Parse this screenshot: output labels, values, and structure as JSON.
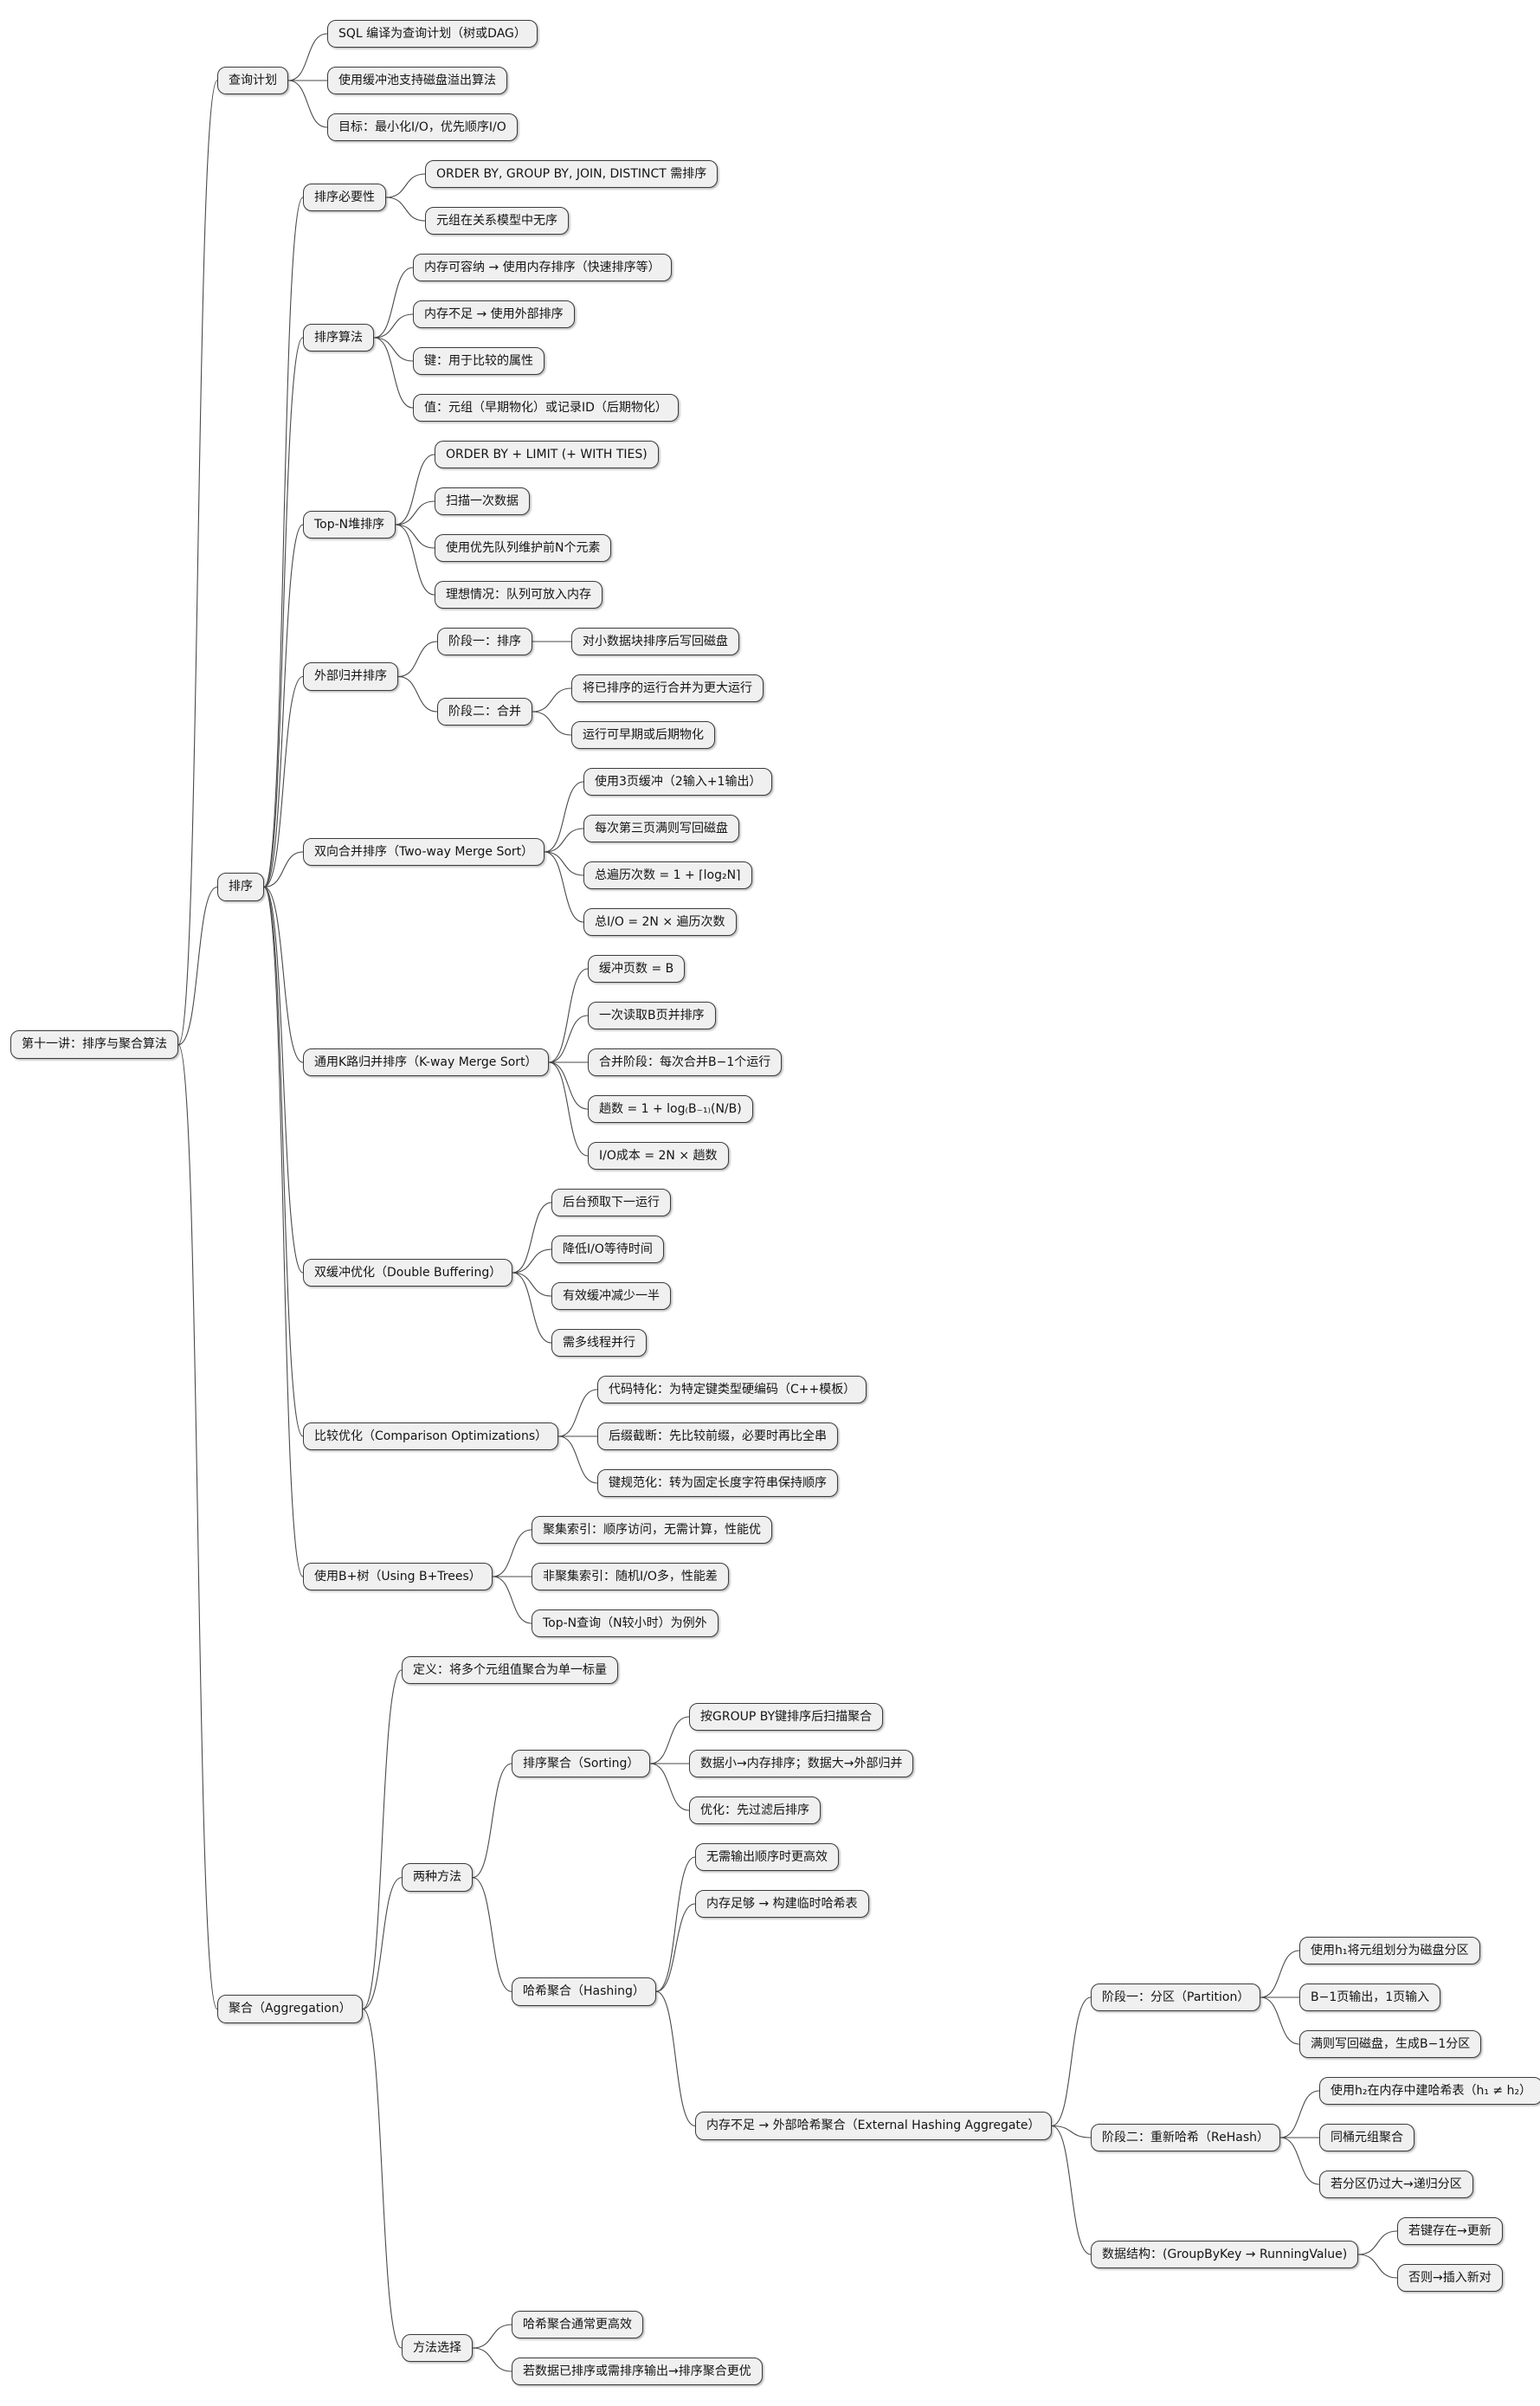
{
  "colors": {
    "background": "#ffffff",
    "node_fill": "#f0f0f0",
    "node_border": "#3c3c3c",
    "edge": "#4a4a4a",
    "text": "#141414"
  },
  "mindmap": {
    "label": "第十一讲：排序与聚合算法",
    "children": [
      {
        "label": "查询计划",
        "children": [
          {
            "label": "SQL 编译为查询计划（树或DAG）"
          },
          {
            "label": "使用缓冲池支持磁盘溢出算法"
          },
          {
            "label": "目标：最小化I/O，优先顺序I/O"
          }
        ]
      },
      {
        "label": "排序",
        "children": [
          {
            "label": "排序必要性",
            "children": [
              {
                "label": "ORDER BY, GROUP BY, JOIN, DISTINCT 需排序"
              },
              {
                "label": "元组在关系模型中无序"
              }
            ]
          },
          {
            "label": "排序算法",
            "children": [
              {
                "label": "内存可容纳 → 使用内存排序（快速排序等）"
              },
              {
                "label": "内存不足 → 使用外部排序"
              },
              {
                "label": "键：用于比较的属性"
              },
              {
                "label": "值：元组（早期物化）或记录ID（后期物化）"
              }
            ]
          },
          {
            "label": "Top-N堆排序",
            "children": [
              {
                "label": "ORDER BY + LIMIT (+ WITH TIES)"
              },
              {
                "label": "扫描一次数据"
              },
              {
                "label": "使用优先队列维护前N个元素"
              },
              {
                "label": "理想情况：队列可放入内存"
              }
            ]
          },
          {
            "label": "外部归并排序",
            "children": [
              {
                "label": "阶段一：排序",
                "children": [
                  {
                    "label": "对小数据块排序后写回磁盘"
                  }
                ]
              },
              {
                "label": "阶段二：合并",
                "children": [
                  {
                    "label": "将已排序的运行合并为更大运行"
                  },
                  {
                    "label": "运行可早期或后期物化"
                  }
                ]
              }
            ]
          },
          {
            "label": "双向合并排序（Two-way Merge Sort）",
            "children": [
              {
                "label": "使用3页缓冲（2输入+1输出）"
              },
              {
                "label": "每次第三页满则写回磁盘"
              },
              {
                "label": "总遍历次数 = 1 + ⌈log₂N⌉"
              },
              {
                "label": "总I/O = 2N × 遍历次数"
              }
            ]
          },
          {
            "label": "通用K路归并排序（K-way Merge Sort）",
            "children": [
              {
                "label": "缓冲页数 = B"
              },
              {
                "label": "一次读取B页并排序"
              },
              {
                "label": "合并阶段：每次合并B−1个运行"
              },
              {
                "label": "趟数 = 1 + log₍B₋₁₎(N/B)"
              },
              {
                "label": "I/O成本 = 2N × 趟数"
              }
            ]
          },
          {
            "label": "双缓冲优化（Double Buffering）",
            "children": [
              {
                "label": "后台预取下一运行"
              },
              {
                "label": "降低I/O等待时间"
              },
              {
                "label": "有效缓冲减少一半"
              },
              {
                "label": "需多线程并行"
              }
            ]
          },
          {
            "label": "比较优化（Comparison Optimizations）",
            "children": [
              {
                "label": "代码特化：为特定键类型硬编码（C++模板）"
              },
              {
                "label": "后缀截断：先比较前缀，必要时再比全串"
              },
              {
                "label": "键规范化：转为固定长度字符串保持顺序"
              }
            ]
          },
          {
            "label": "使用B+树（Using B+Trees）",
            "children": [
              {
                "label": "聚集索引：顺序访问，无需计算，性能优"
              },
              {
                "label": "非聚集索引：随机I/O多，性能差"
              },
              {
                "label": "Top-N查询（N较小时）为例外"
              }
            ]
          }
        ]
      },
      {
        "label": "聚合（Aggregation）",
        "children": [
          {
            "label": "定义：将多个元组值聚合为单一标量"
          },
          {
            "label": "两种方法",
            "children": [
              {
                "label": "排序聚合（Sorting）",
                "children": [
                  {
                    "label": "按GROUP BY键排序后扫描聚合"
                  },
                  {
                    "label": "数据小→内存排序；数据大→外部归并"
                  },
                  {
                    "label": "优化：先过滤后排序"
                  }
                ]
              },
              {
                "label": "哈希聚合（Hashing）",
                "children": [
                  {
                    "label": "无需输出顺序时更高效"
                  },
                  {
                    "label": "内存足够 → 构建临时哈希表"
                  },
                  {
                    "label": "内存不足 → 外部哈希聚合（External Hashing Aggregate）",
                    "children": [
                      {
                        "label": "阶段一：分区（Partition）",
                        "children": [
                          {
                            "label": "使用h₁将元组划分为磁盘分区"
                          },
                          {
                            "label": "B−1页输出，1页输入"
                          },
                          {
                            "label": "满则写回磁盘，生成B−1分区"
                          }
                        ]
                      },
                      {
                        "label": "阶段二：重新哈希（ReHash）",
                        "children": [
                          {
                            "label": "使用h₂在内存中建哈希表（h₁ ≠ h₂）"
                          },
                          {
                            "label": "同桶元组聚合"
                          },
                          {
                            "label": "若分区仍过大→递归分区"
                          }
                        ]
                      },
                      {
                        "label": "数据结构：(GroupByKey → RunningValue)",
                        "children": [
                          {
                            "label": "若键存在→更新"
                          },
                          {
                            "label": "否则→插入新对"
                          }
                        ]
                      }
                    ]
                  }
                ]
              }
            ]
          },
          {
            "label": "方法选择",
            "children": [
              {
                "label": "哈希聚合通常更高效"
              },
              {
                "label": "若数据已排序或需排序输出→排序聚合更优"
              }
            ]
          }
        ]
      }
    ]
  }
}
